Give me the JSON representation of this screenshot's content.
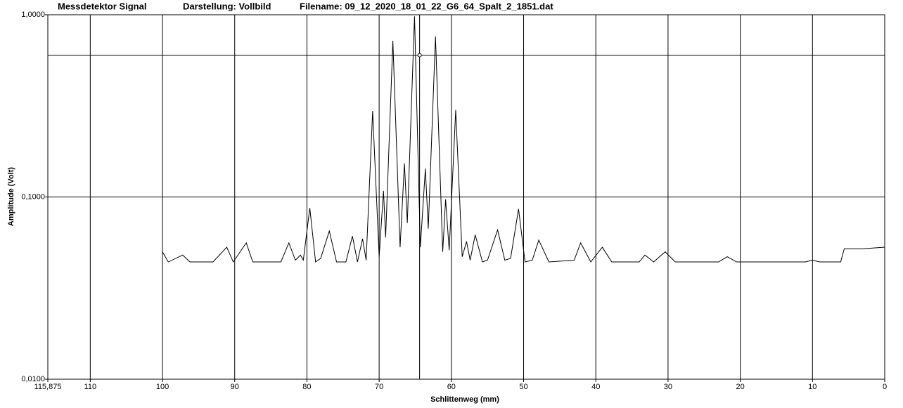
{
  "chart_data": {
    "type": "line",
    "title": "Messdetektor Signal",
    "subtitle": "Darstellung: Vollbild",
    "filename": "Filename: 09_12_2020_18_01_22_G6_64_Spalt_2_1851.dat",
    "x_label": "Schlittenweg (mm)",
    "y_label": "Amplitude (Volt)",
    "log_y": true,
    "x_reversed": true,
    "grid": true,
    "color": "#000000",
    "xlim": [
      115.875,
      0
    ],
    "ylim": [
      0.01,
      1
    ],
    "xticks": [
      {
        "value": 115.875,
        "label": "115,875"
      },
      110,
      100,
      90,
      80,
      70,
      60,
      50,
      40,
      30,
      20,
      10,
      0
    ],
    "yticks": [
      {
        "value": 0.01,
        "label": "0,0100"
      },
      {
        "value": 0.1,
        "label": "0,1000"
      },
      {
        "value": 1,
        "label": "1,0000"
      }
    ],
    "cursor": {
      "x": 64.4,
      "y": 0.6
    },
    "x": [
      100,
      99.2,
      97.2,
      96.2,
      93,
      91.1,
      90.2,
      88.4,
      87.5,
      83.6,
      82.5,
      81.6,
      80.9,
      80.5,
      79.6,
      78.8,
      78.1,
      76.9,
      75.9,
      74.6,
      73.7,
      73.0,
      72.3,
      71.8,
      70.9,
      70.0,
      69.4,
      69.1,
      68.1,
      67.1,
      66.5,
      66.1,
      65.1,
      64.3,
      63.6,
      63.2,
      62.2,
      61.2,
      60.8,
      60.3,
      59.4,
      58.5,
      57.9,
      57.4,
      56.7,
      55.7,
      55.0,
      53.6,
      52.6,
      51.8,
      50.7,
      49.8,
      48.8,
      47.9,
      46.5,
      43.0,
      42.1,
      40.7,
      39.1,
      37.8,
      34.0,
      33.2,
      32.0,
      30.4,
      29.0,
      23.0,
      21.8,
      20.5,
      11.0,
      10.0,
      9.0,
      6.1,
      5.6,
      3.0,
      0
    ],
    "values": [
      0.05,
      0.044,
      0.048,
      0.044,
      0.044,
      0.053,
      0.044,
      0.056,
      0.044,
      0.044,
      0.056,
      0.045,
      0.048,
      0.045,
      0.087,
      0.044,
      0.046,
      0.065,
      0.044,
      0.044,
      0.061,
      0.044,
      0.059,
      0.045,
      0.296,
      0.047,
      0.108,
      0.06,
      0.72,
      0.053,
      0.153,
      0.072,
      0.98,
      0.053,
      0.143,
      0.067,
      0.76,
      0.05,
      0.097,
      0.051,
      0.3,
      0.047,
      0.057,
      0.045,
      0.062,
      0.044,
      0.045,
      0.066,
      0.045,
      0.046,
      0.086,
      0.044,
      0.045,
      0.058,
      0.044,
      0.045,
      0.056,
      0.044,
      0.053,
      0.044,
      0.044,
      0.048,
      0.044,
      0.05,
      0.044,
      0.044,
      0.047,
      0.044,
      0.044,
      0.045,
      0.044,
      0.044,
      0.052,
      0.052,
      0.053
    ]
  }
}
